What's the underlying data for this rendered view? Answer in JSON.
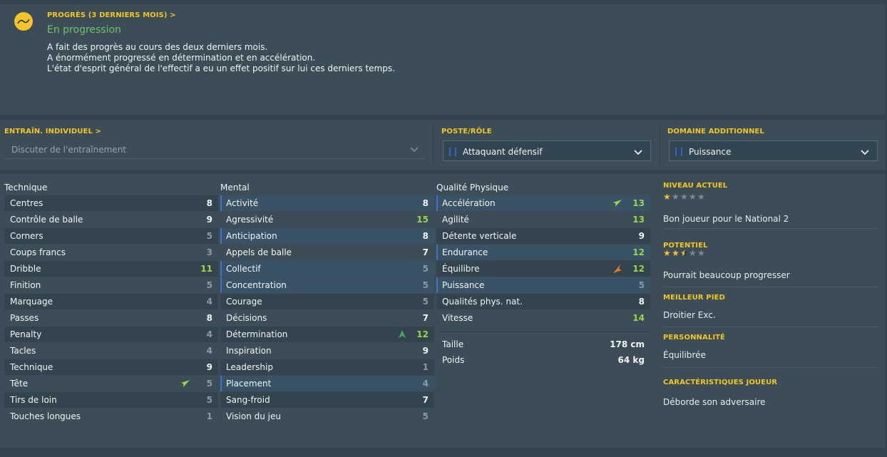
{
  "progress": {
    "header": "PROGRÈS (3 DERNIERS MOIS) >",
    "title": "En progression",
    "lines": [
      "A fait des progrès au cours des deux derniers mois.",
      "A énormément progressé en détermination et en accélération.",
      "L'état d'esprit général de l'effectif a eu un effet positif sur lui ces derniers temps."
    ],
    "icon": "trend-chart-icon"
  },
  "training": {
    "individual_header": "ENTRAÎN. INDIVIDUEL >",
    "individual_placeholder": "Discuter de l'entraînement",
    "position_header": "POSTE/RÔLE",
    "position_value": "Attaquant défensif",
    "additional_header": "DOMAINE ADDITIONNEL",
    "additional_value": "Puissance"
  },
  "columns": {
    "technique": "Technique",
    "mental": "Mental",
    "physical": "Qualité Physique"
  },
  "technique": [
    {
      "name": "Centres",
      "value": "8",
      "tone": "white"
    },
    {
      "name": "Contrôle de balle",
      "value": "9",
      "tone": "white"
    },
    {
      "name": "Corners",
      "value": "5",
      "tone": "grey"
    },
    {
      "name": "Coups francs",
      "value": "3",
      "tone": "grey"
    },
    {
      "name": "Dribble",
      "value": "11",
      "tone": "green"
    },
    {
      "name": "Finition",
      "value": "5",
      "tone": "grey"
    },
    {
      "name": "Marquage",
      "value": "4",
      "tone": "grey"
    },
    {
      "name": "Passes",
      "value": "8",
      "tone": "white"
    },
    {
      "name": "Penalty",
      "value": "4",
      "tone": "grey"
    },
    {
      "name": "Tacles",
      "value": "4",
      "tone": "grey"
    },
    {
      "name": "Technique",
      "value": "9",
      "tone": "white"
    },
    {
      "name": "Tête",
      "value": "5",
      "tone": "grey",
      "arrow": "up-right-green"
    },
    {
      "name": "Tirs de loin",
      "value": "5",
      "tone": "grey"
    },
    {
      "name": "Touches longues",
      "value": "1",
      "tone": "grey"
    }
  ],
  "mental": [
    {
      "name": "Activité",
      "value": "8",
      "tone": "white",
      "hl": true
    },
    {
      "name": "Agressivité",
      "value": "15",
      "tone": "green"
    },
    {
      "name": "Anticipation",
      "value": "8",
      "tone": "white",
      "hl": true
    },
    {
      "name": "Appels de balle",
      "value": "7",
      "tone": "white"
    },
    {
      "name": "Collectif",
      "value": "5",
      "tone": "grey",
      "hl": true
    },
    {
      "name": "Concentration",
      "value": "5",
      "tone": "grey",
      "hl": true
    },
    {
      "name": "Courage",
      "value": "5",
      "tone": "grey"
    },
    {
      "name": "Décisions",
      "value": "7",
      "tone": "white"
    },
    {
      "name": "Détermination",
      "value": "12",
      "tone": "green",
      "arrow": "up-green"
    },
    {
      "name": "Inspiration",
      "value": "9",
      "tone": "white"
    },
    {
      "name": "Leadership",
      "value": "1",
      "tone": "grey"
    },
    {
      "name": "Placement",
      "value": "4",
      "tone": "grey",
      "hl": true
    },
    {
      "name": "Sang-froid",
      "value": "7",
      "tone": "white"
    },
    {
      "name": "Vision du jeu",
      "value": "5",
      "tone": "grey"
    }
  ],
  "physical": [
    {
      "name": "Accélération",
      "value": "13",
      "tone": "green",
      "hl": true,
      "arrow": "up-right-green"
    },
    {
      "name": "Agilité",
      "value": "13",
      "tone": "green"
    },
    {
      "name": "Détente verticale",
      "value": "9",
      "tone": "white"
    },
    {
      "name": "Endurance",
      "value": "12",
      "tone": "green",
      "hl": true
    },
    {
      "name": "Équilibre",
      "value": "12",
      "tone": "green",
      "arrow": "down-left-orange"
    },
    {
      "name": "Puissance",
      "value": "5",
      "tone": "grey",
      "hl": true
    },
    {
      "name": "Qualités phys. nat.",
      "value": "8",
      "tone": "white"
    },
    {
      "name": "Vitesse",
      "value": "14",
      "tone": "green"
    }
  ],
  "body": {
    "height_label": "Taille",
    "height_value": "178 cm",
    "weight_label": "Poids",
    "weight_value": "64 kg"
  },
  "info": {
    "current_header": "NIVEAU ACTUEL",
    "current_stars": 1,
    "current_text": "Bon joueur pour le National 2",
    "potential_header": "POTENTIEL",
    "potential_stars": 2.5,
    "potential_text": "Pourrait beaucoup progresser",
    "foot_header": "MEILLEUR PIED",
    "foot_text": "Droitier Exc.",
    "personality_header": "PERSONNALITÉ",
    "personality_text": "Équilibrée",
    "traits_header": "CARACTÉRISTIQUES JOUEUR",
    "traits_text": "Déborde son adversaire"
  },
  "colors": {
    "accent": "#f2c61f",
    "positive": "#9bd44d",
    "progress_title": "#6cc46a",
    "highlight_bar": "#3a76c8",
    "decline": "#e07a2c"
  }
}
